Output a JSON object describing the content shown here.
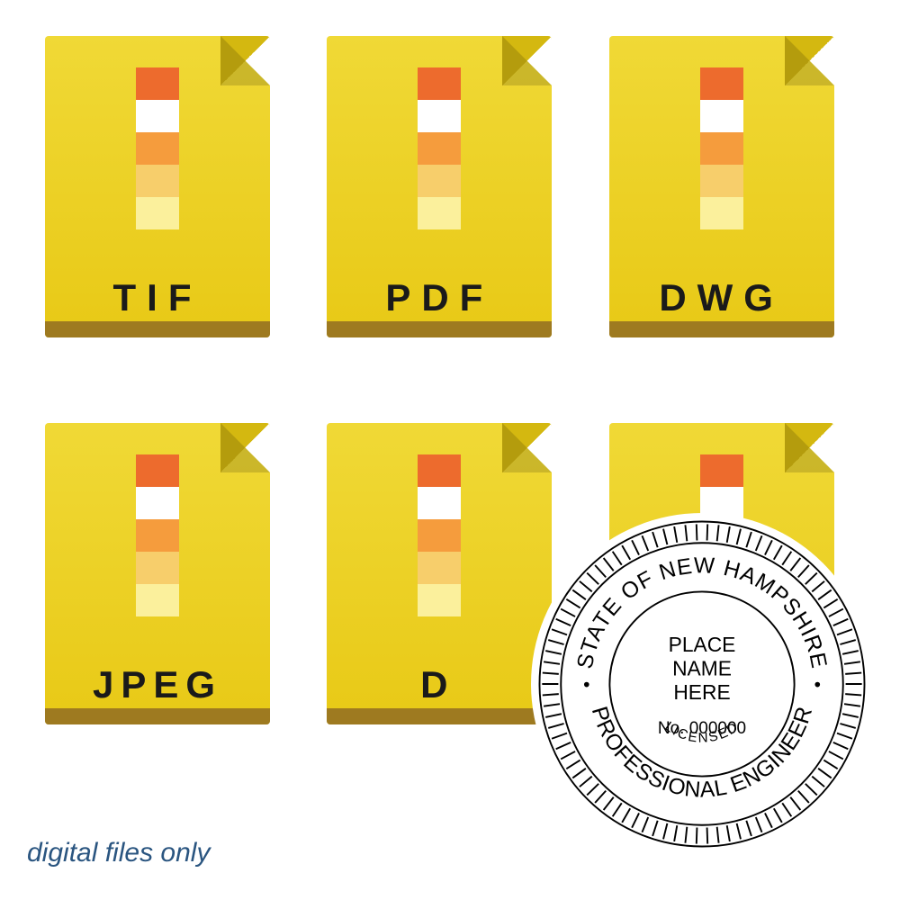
{
  "color_bar": {
    "blocks": [
      "#ed6b2d",
      "#ffffff",
      "#f59c3d",
      "#f7ce6b",
      "#fbf09c"
    ]
  },
  "files": [
    {
      "label": "TIF"
    },
    {
      "label": "PDF"
    },
    {
      "label": "DWG"
    },
    {
      "label": "JPEG"
    },
    {
      "label": "D"
    },
    {
      "label": ""
    }
  ],
  "footer": {
    "text": "digital files only"
  },
  "seal": {
    "outer_text_top": "STATE OF NEW HAMPSHIRE",
    "outer_text_bottom": "PROFESSIONAL ENGINEER",
    "center_line1": "PLACE",
    "center_line2": "NAME",
    "center_line3": "HERE",
    "number": "No. 000000",
    "licensed": "LICENSED"
  }
}
